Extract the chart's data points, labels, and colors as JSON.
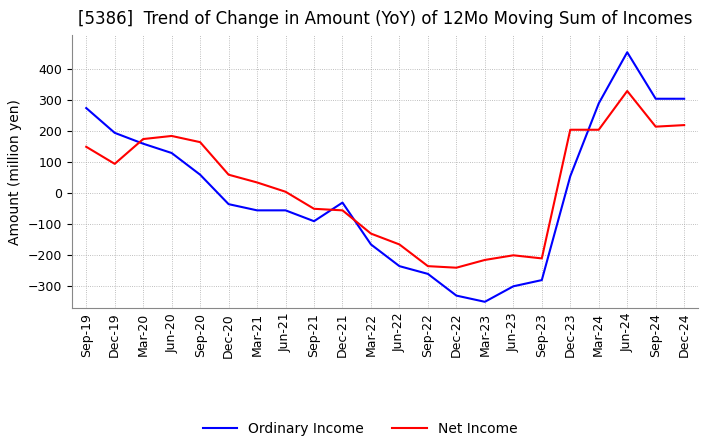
{
  "title": "[5386]  Trend of Change in Amount (YoY) of 12Mo Moving Sum of Incomes",
  "ylabel": "Amount (million yen)",
  "ylim": [
    -370,
    510
  ],
  "yticks": [
    -300,
    -200,
    -100,
    0,
    100,
    200,
    300,
    400
  ],
  "x_labels": [
    "Sep-19",
    "Dec-19",
    "Mar-20",
    "Jun-20",
    "Sep-20",
    "Dec-20",
    "Mar-21",
    "Jun-21",
    "Sep-21",
    "Dec-21",
    "Mar-22",
    "Jun-22",
    "Sep-22",
    "Dec-22",
    "Mar-23",
    "Jun-23",
    "Sep-23",
    "Dec-23",
    "Mar-24",
    "Jun-24",
    "Sep-24",
    "Dec-24"
  ],
  "ordinary_income": [
    275,
    195,
    160,
    130,
    60,
    -35,
    -55,
    -55,
    -90,
    -30,
    -165,
    -235,
    -260,
    -330,
    -350,
    -300,
    -280,
    55,
    290,
    455,
    305,
    305
  ],
  "net_income": [
    150,
    95,
    175,
    185,
    165,
    60,
    35,
    5,
    -50,
    -55,
    -130,
    -165,
    -235,
    -240,
    -215,
    -200,
    -210,
    205,
    205,
    330,
    215,
    220
  ],
  "ordinary_color": "#0000ff",
  "net_color": "#ff0000",
  "background_color": "#ffffff",
  "grid_color": "#aaaaaa",
  "title_fontsize": 12,
  "axis_fontsize": 10,
  "tick_fontsize": 9
}
